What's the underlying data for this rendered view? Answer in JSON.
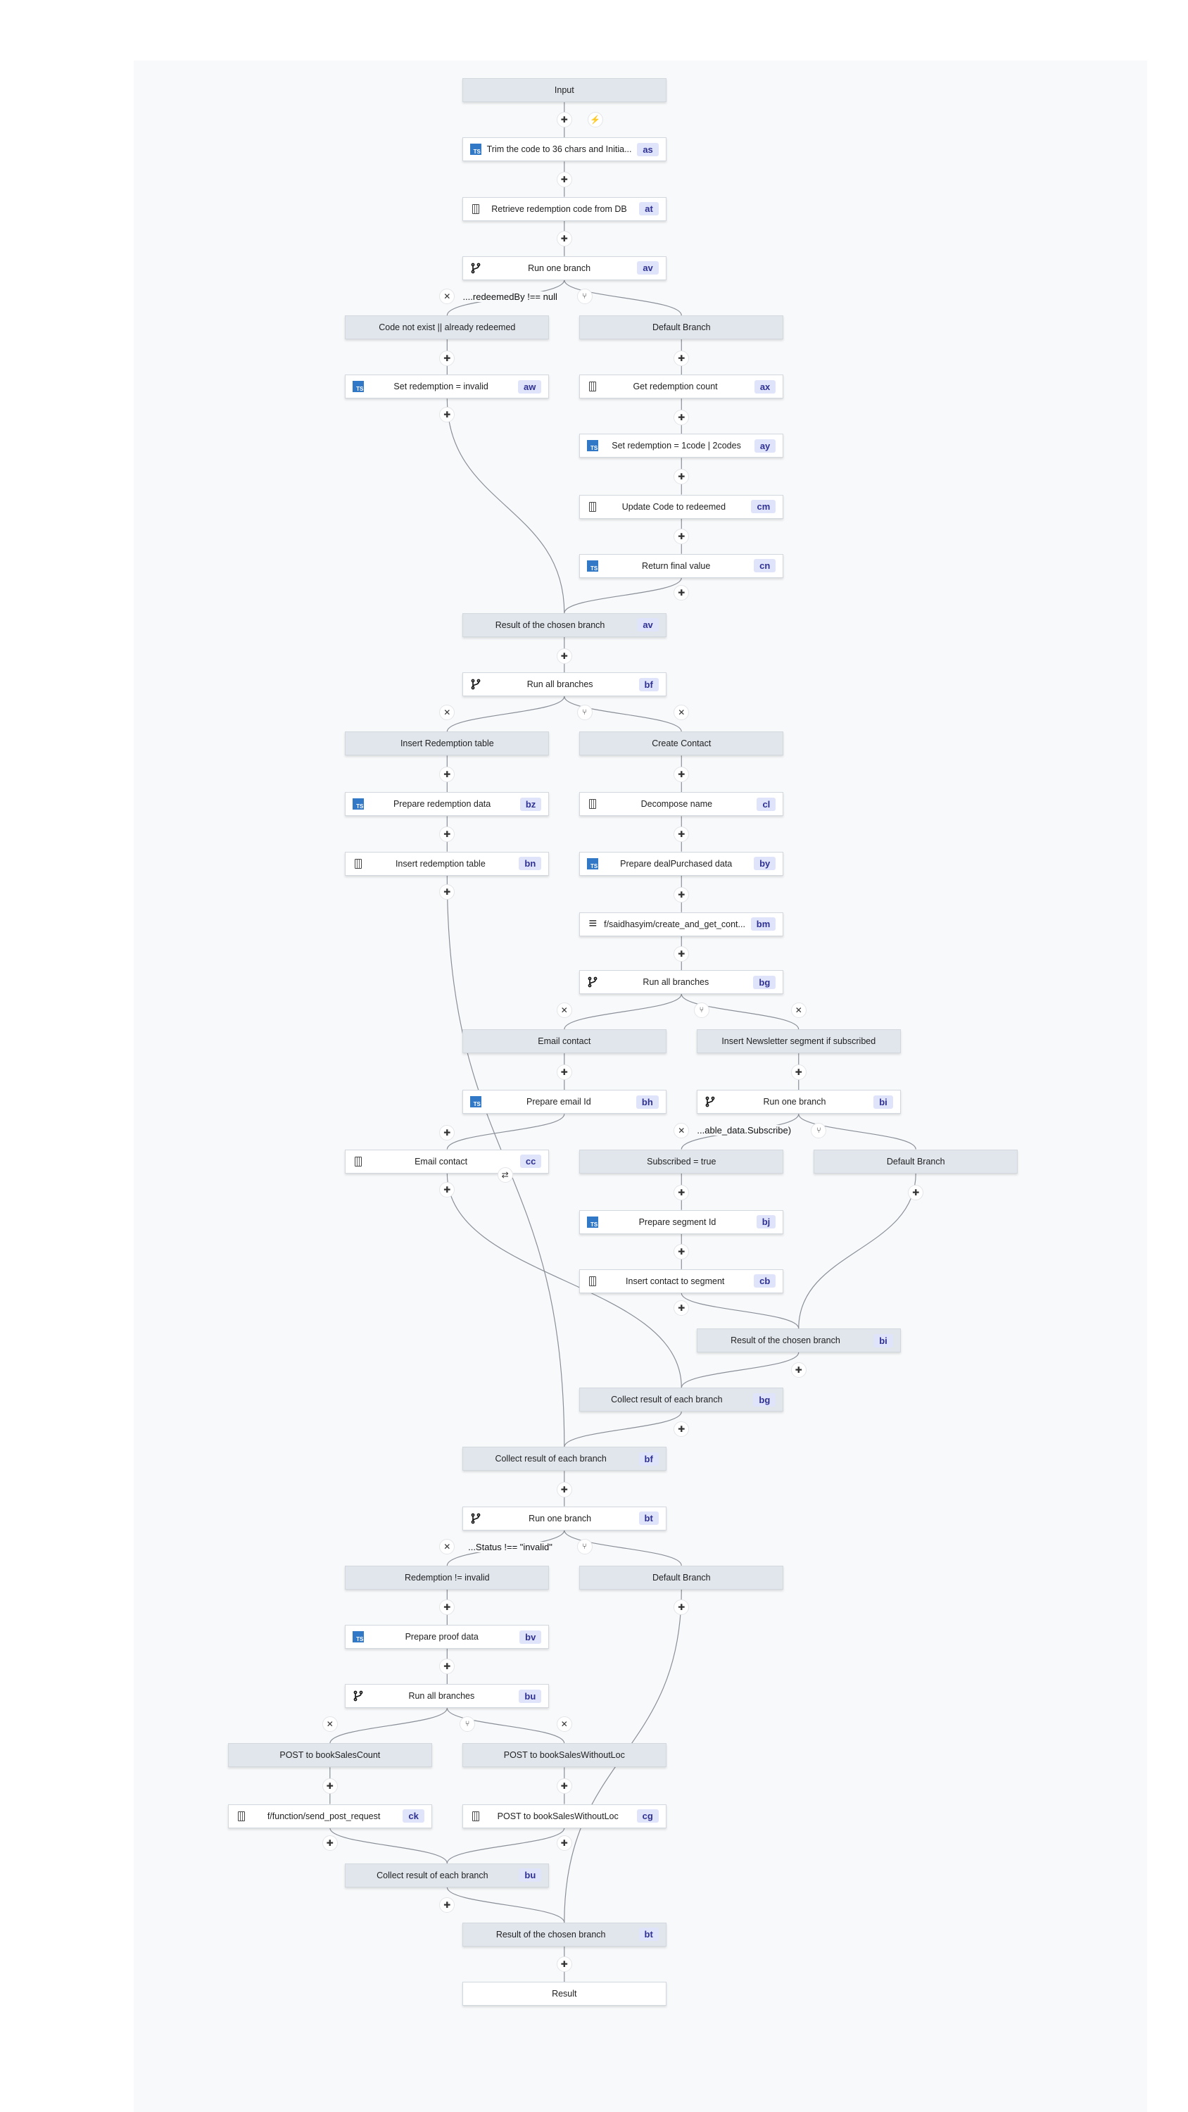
{
  "nodes": [
    {
      "label": "Input",
      "kind": "group"
    },
    {
      "label": "Trim the code to 36 chars and Initia...",
      "id": "as",
      "icon": "typescript-icon"
    },
    {
      "label": "Retrieve redemption code from DB",
      "id": "at",
      "icon": "database-icon"
    },
    {
      "label": "Run one branch",
      "id": "av",
      "icon": "branch-icon"
    },
    {
      "label": "Code not exist || already redeemed",
      "kind": "group"
    },
    {
      "label": "Default Branch",
      "kind": "group"
    },
    {
      "label": "Set redemption = invalid",
      "id": "aw",
      "icon": "typescript-icon"
    },
    {
      "label": "Get redemption count",
      "id": "ax",
      "icon": "database-icon"
    },
    {
      "label": "Set redemption = 1code | 2codes",
      "id": "ay",
      "icon": "typescript-icon"
    },
    {
      "label": "Update Code to redeemed",
      "id": "cm",
      "icon": "database-icon"
    },
    {
      "label": "Return final value",
      "id": "cn",
      "icon": "typescript-icon"
    },
    {
      "label": "Result of the chosen branch",
      "id": "av",
      "kind": "group"
    },
    {
      "label": "Run all branches",
      "id": "bf",
      "icon": "branch-icon"
    },
    {
      "label": "Insert Redemption table",
      "kind": "group"
    },
    {
      "label": "Create Contact",
      "kind": "group"
    },
    {
      "label": "Prepare redemption data",
      "id": "bz",
      "icon": "typescript-icon"
    },
    {
      "label": "Decompose name",
      "id": "cl",
      "icon": "database-icon"
    },
    {
      "label": "Insert redemption table",
      "id": "bn",
      "icon": "database-icon"
    },
    {
      "label": "Prepare dealPurchased data",
      "id": "by",
      "icon": "typescript-icon"
    },
    {
      "label": "f/saidhasyim/create_and_get_cont...",
      "id": "bm",
      "icon": "flow-icon"
    },
    {
      "label": "Run all branches",
      "id": "bg",
      "icon": "branch-icon"
    },
    {
      "label": "Email contact",
      "kind": "group"
    },
    {
      "label": "Insert Newsletter segment if subscribed",
      "kind": "group"
    },
    {
      "label": "Prepare email Id",
      "id": "bh",
      "icon": "typescript-icon"
    },
    {
      "label": "Run one branch",
      "id": "bi",
      "icon": "branch-icon"
    },
    {
      "label": "Email contact",
      "id": "cc",
      "icon": "database-icon"
    },
    {
      "label": "Subscribed = true",
      "kind": "group"
    },
    {
      "label": "Default Branch",
      "kind": "group"
    },
    {
      "label": "Prepare segment Id",
      "id": "bj",
      "icon": "typescript-icon"
    },
    {
      "label": "Insert contact to segment",
      "id": "cb",
      "icon": "database-icon"
    },
    {
      "label": "Result of the chosen branch",
      "id": "bi",
      "kind": "group"
    },
    {
      "label": "Collect result of each branch",
      "id": "bg",
      "kind": "group"
    },
    {
      "label": "Collect result of each branch",
      "id": "bf",
      "kind": "group"
    },
    {
      "label": "Run one branch",
      "id": "bt",
      "icon": "branch-icon"
    },
    {
      "label": "Redemption != invalid",
      "kind": "group"
    },
    {
      "label": "Default Branch",
      "kind": "group"
    },
    {
      "label": "Prepare proof data",
      "id": "bv",
      "icon": "typescript-icon"
    },
    {
      "label": "Run all branches",
      "id": "bu",
      "icon": "branch-icon"
    },
    {
      "label": "POST to bookSalesCount",
      "kind": "group"
    },
    {
      "label": "POST to bookSalesWithoutLoc",
      "kind": "group"
    },
    {
      "label": "f/function/send_post_request",
      "id": "ck",
      "icon": "database-icon"
    },
    {
      "label": "POST to bookSalesWithoutLoc",
      "id": "cg",
      "icon": "database-icon"
    },
    {
      "label": "Collect result of each branch",
      "id": "bu",
      "kind": "group"
    },
    {
      "label": "Result of the chosen branch",
      "id": "bt",
      "kind": "group"
    },
    {
      "label": "Result",
      "kind": "step"
    }
  ],
  "conditions": [
    "....redeemedBy !== null",
    "...able_data.Subscribe)",
    "...Status !== \"invalid\""
  ],
  "colors": {
    "typescript": "#3178c6",
    "group_bg": "#e1e6ed",
    "badge_bg": "#e0e4fb",
    "badge_text": "#2e3192",
    "edge": "#8a8f98"
  }
}
